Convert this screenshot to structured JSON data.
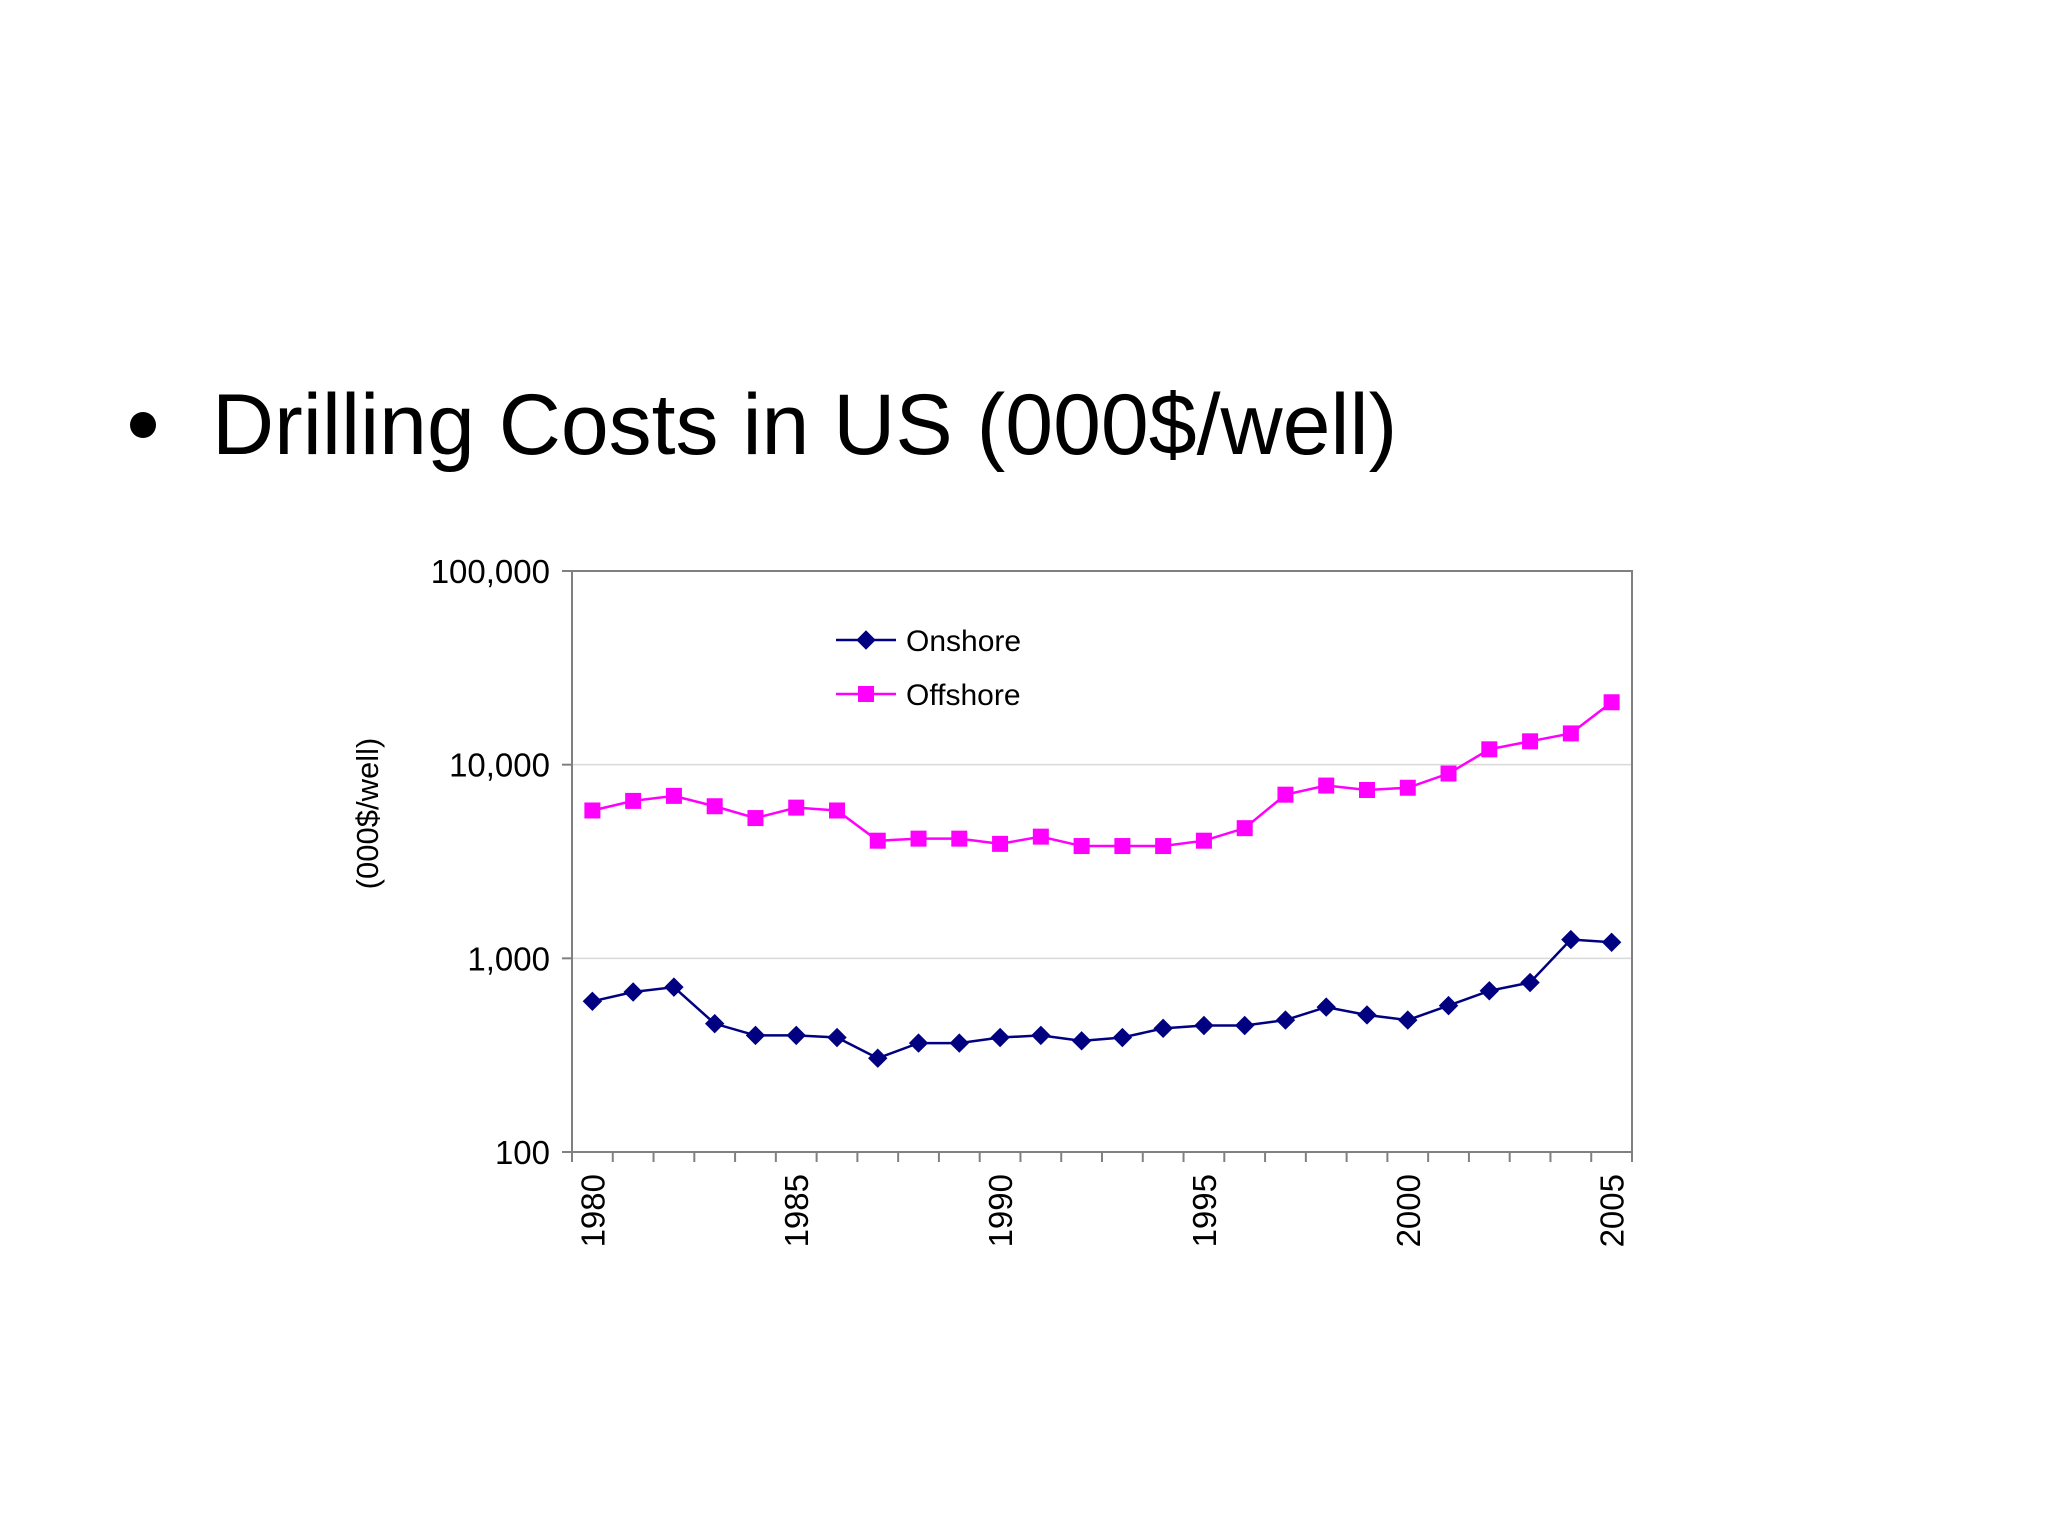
{
  "slide": {
    "bullet_text": "Drilling Costs in US (000$/well)"
  },
  "chart_data": {
    "type": "line",
    "title": "",
    "xlabel": "",
    "ylabel": "(000$/well)",
    "y_scale": "log",
    "ylim": [
      100,
      100000
    ],
    "y_ticks": [
      {
        "value": 100,
        "label": "100"
      },
      {
        "value": 1000,
        "label": "1,000"
      },
      {
        "value": 10000,
        "label": "10,000"
      },
      {
        "value": 100000,
        "label": "100,000"
      }
    ],
    "x": [
      1980,
      1981,
      1982,
      1983,
      1984,
      1985,
      1986,
      1987,
      1988,
      1989,
      1990,
      1991,
      1992,
      1993,
      1994,
      1995,
      1996,
      1997,
      1998,
      1999,
      2000,
      2001,
      2002,
      2003,
      2004,
      2005
    ],
    "x_tick_labels": [
      {
        "value": 1980,
        "label": "1980"
      },
      {
        "value": 1985,
        "label": "1985"
      },
      {
        "value": 1990,
        "label": "1990"
      },
      {
        "value": 1995,
        "label": "1995"
      },
      {
        "value": 2000,
        "label": "2000"
      },
      {
        "value": 2005,
        "label": "2005"
      }
    ],
    "grid": {
      "horizontal_major": true,
      "vertical": false
    },
    "legend": {
      "placement": "top-center"
    },
    "series": [
      {
        "name": "Onshore",
        "color": "#000080",
        "marker": "diamond",
        "values": [
          600,
          670,
          710,
          460,
          400,
          400,
          390,
          305,
          365,
          365,
          390,
          400,
          375,
          390,
          435,
          450,
          450,
          480,
          560,
          510,
          480,
          570,
          680,
          750,
          1250,
          1210
        ]
      },
      {
        "name": "Offshore",
        "color": "#FF00FF",
        "marker": "square",
        "values": [
          5800,
          6500,
          6900,
          6100,
          5300,
          6000,
          5800,
          4050,
          4150,
          4150,
          3900,
          4250,
          3800,
          3800,
          3800,
          4050,
          4700,
          7000,
          7800,
          7400,
          7600,
          9000,
          12000,
          13200,
          14500,
          21000
        ]
      }
    ]
  }
}
